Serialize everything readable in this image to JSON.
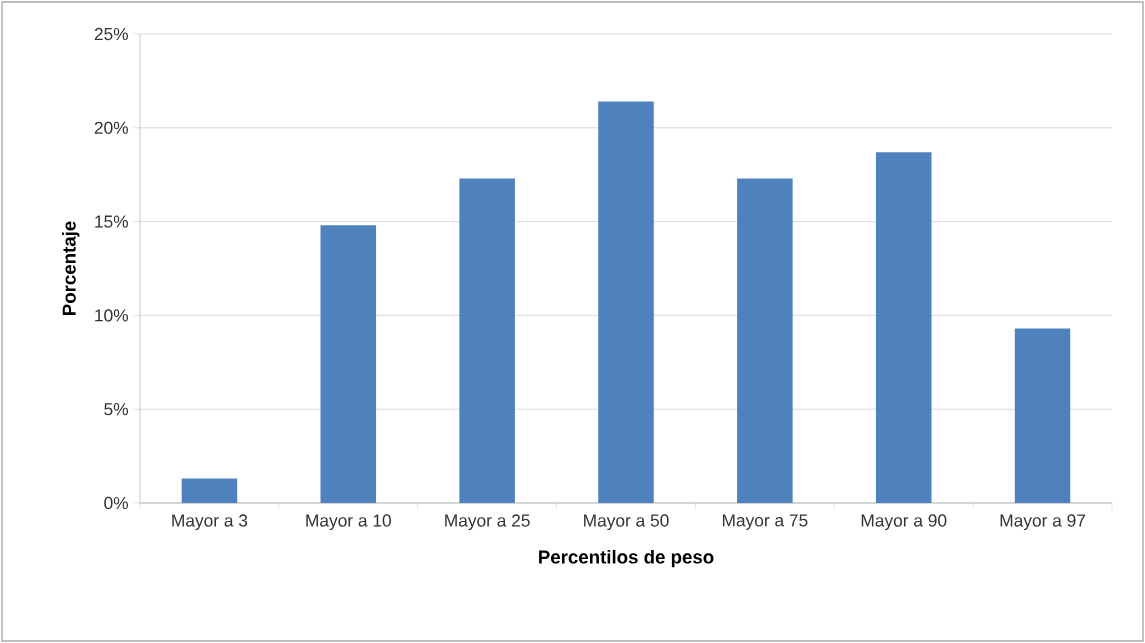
{
  "chart_data": {
    "type": "bar",
    "xlabel": "Percentilos de peso",
    "ylabel": "Porcentaje",
    "categories": [
      "Mayor a 3",
      "Mayor a 10",
      "Mayor a 25",
      "Mayor a 50",
      "Mayor a 75",
      "Mayor a 90",
      "Mayor a 97"
    ],
    "values": [
      1.3,
      14.8,
      17.3,
      21.4,
      17.3,
      18.7,
      9.3
    ],
    "color": "#4f81bd",
    "ylim": [
      0,
      25
    ],
    "yticks": [
      {
        "value": 0,
        "label": "0%"
      },
      {
        "value": 5,
        "label": "5%"
      },
      {
        "value": 10,
        "label": "10%"
      },
      {
        "value": 15,
        "label": "15%"
      },
      {
        "value": 20,
        "label": "20%"
      },
      {
        "value": 25,
        "label": "25%"
      }
    ],
    "grid": "y"
  }
}
